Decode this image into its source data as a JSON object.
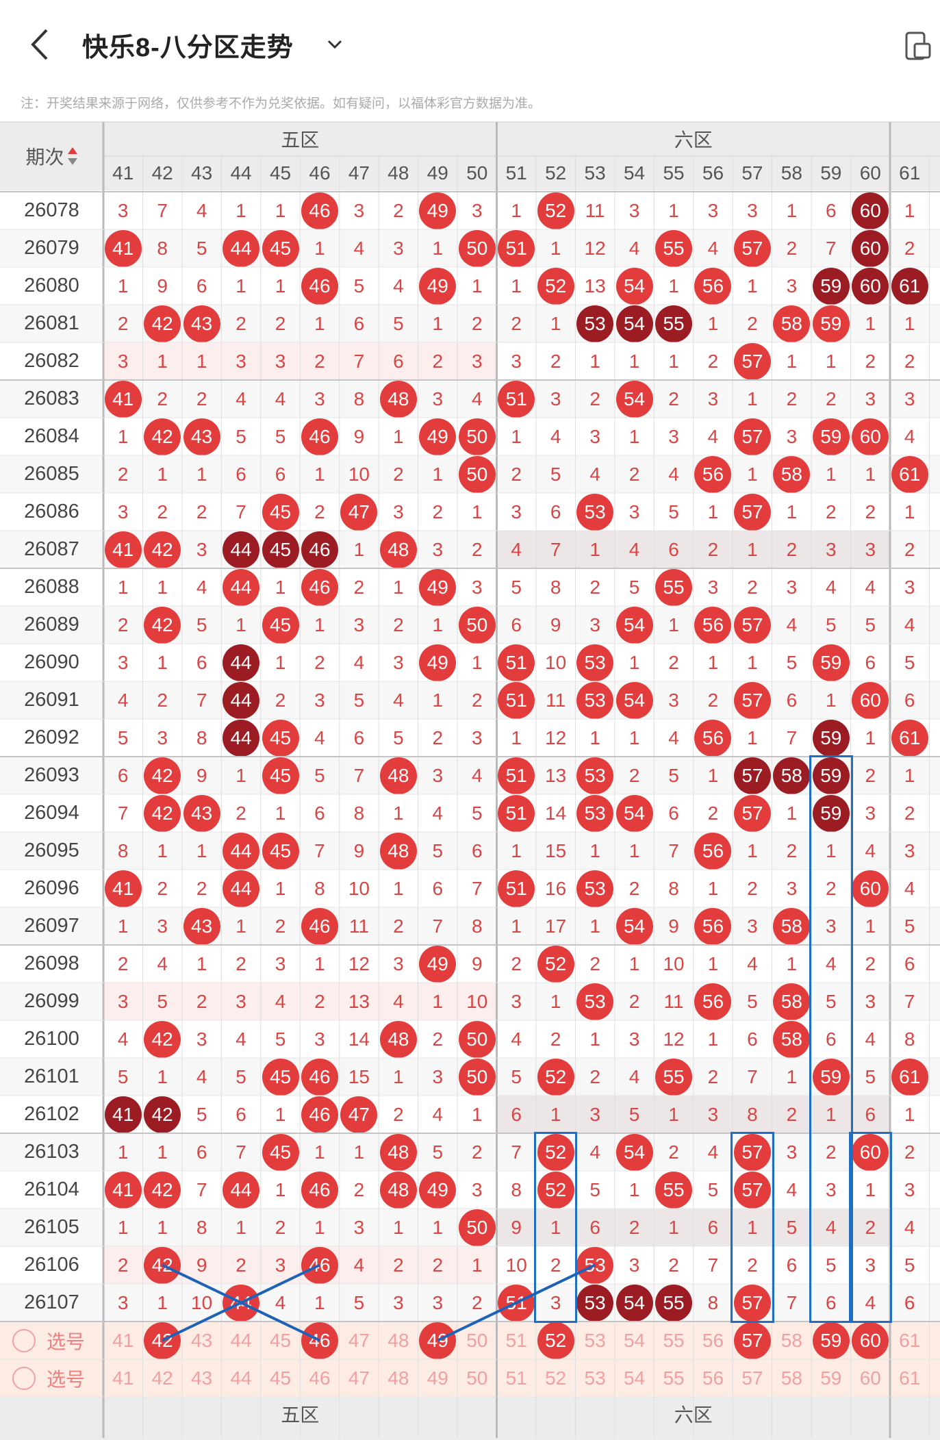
{
  "header": {
    "title": "快乐8-八分区走势",
    "note": "注：开奖结果来源于网络，仅供参考不作为兑奖依据。如有疑问，以福体彩官方数据为准。"
  },
  "table": {
    "period_header": "期次",
    "zones": [
      "五区",
      "六区"
    ],
    "columns": [
      "41",
      "42",
      "43",
      "44",
      "45",
      "46",
      "47",
      "48",
      "49",
      "50",
      "51",
      "52",
      "53",
      "54",
      "55",
      "56",
      "57",
      "58",
      "59",
      "60",
      "61"
    ],
    "rows": [
      {
        "p": "26078",
        "c": [
          "3",
          "7",
          "4",
          "1",
          "1",
          "46",
          "3",
          "2",
          "49",
          "3",
          "1",
          "52",
          "11",
          "3",
          "1",
          "3",
          "3",
          "1",
          "6",
          "60",
          "1"
        ],
        "b": [
          5,
          8,
          11,
          19
        ],
        "d": [
          19
        ]
      },
      {
        "p": "26079",
        "c": [
          "41",
          "8",
          "5",
          "44",
          "45",
          "1",
          "4",
          "3",
          "1",
          "50",
          "51",
          "1",
          "12",
          "4",
          "55",
          "4",
          "57",
          "2",
          "7",
          "60",
          "2"
        ],
        "b": [
          0,
          3,
          4,
          9,
          10,
          14,
          16,
          19
        ],
        "d": [
          19
        ]
      },
      {
        "p": "26080",
        "c": [
          "1",
          "9",
          "6",
          "1",
          "1",
          "46",
          "5",
          "4",
          "49",
          "1",
          "1",
          "52",
          "13",
          "54",
          "1",
          "56",
          "1",
          "3",
          "59",
          "60",
          "61"
        ],
        "b": [
          5,
          8,
          11,
          13,
          15,
          18,
          19,
          20
        ],
        "d": [
          18,
          19,
          20
        ]
      },
      {
        "p": "26081",
        "c": [
          "2",
          "42",
          "43",
          "2",
          "2",
          "1",
          "6",
          "5",
          "1",
          "2",
          "2",
          "1",
          "53",
          "54",
          "55",
          "1",
          "2",
          "58",
          "59",
          "1",
          "1"
        ],
        "b": [
          1,
          2,
          12,
          13,
          14,
          17,
          18
        ],
        "d": [
          12,
          13,
          14
        ]
      },
      {
        "p": "26082",
        "c": [
          "3",
          "1",
          "1",
          "3",
          "3",
          "2",
          "7",
          "6",
          "2",
          "3",
          "3",
          "2",
          "1",
          "1",
          "1",
          "2",
          "57",
          "1",
          "1",
          "2",
          "2"
        ],
        "b": [
          16
        ],
        "d": []
      },
      {
        "p": "26083",
        "c": [
          "41",
          "2",
          "2",
          "4",
          "4",
          "3",
          "8",
          "48",
          "3",
          "4",
          "51",
          "3",
          "2",
          "54",
          "2",
          "3",
          "1",
          "2",
          "2",
          "3",
          "3"
        ],
        "b": [
          0,
          7,
          10,
          13
        ],
        "d": []
      },
      {
        "p": "26084",
        "c": [
          "1",
          "42",
          "43",
          "5",
          "5",
          "46",
          "9",
          "1",
          "49",
          "50",
          "1",
          "4",
          "3",
          "1",
          "3",
          "4",
          "57",
          "3",
          "59",
          "60",
          "4"
        ],
        "b": [
          1,
          2,
          5,
          8,
          9,
          16,
          18,
          19
        ],
        "d": []
      },
      {
        "p": "26085",
        "c": [
          "2",
          "1",
          "1",
          "6",
          "6",
          "1",
          "10",
          "2",
          "1",
          "50",
          "2",
          "5",
          "4",
          "2",
          "4",
          "56",
          "1",
          "58",
          "1",
          "1",
          "61"
        ],
        "b": [
          9,
          15,
          17,
          20
        ],
        "d": []
      },
      {
        "p": "26086",
        "c": [
          "3",
          "2",
          "2",
          "7",
          "45",
          "2",
          "47",
          "3",
          "2",
          "1",
          "3",
          "6",
          "53",
          "3",
          "5",
          "1",
          "57",
          "1",
          "2",
          "2",
          "1"
        ],
        "b": [
          4,
          6,
          12,
          16
        ],
        "d": []
      },
      {
        "p": "26087",
        "c": [
          "41",
          "42",
          "3",
          "44",
          "45",
          "46",
          "1",
          "48",
          "3",
          "2",
          "4",
          "7",
          "1",
          "4",
          "6",
          "2",
          "1",
          "2",
          "3",
          "3",
          "2"
        ],
        "b": [
          0,
          1,
          3,
          4,
          5,
          7
        ],
        "d": [
          3,
          4,
          5
        ]
      },
      {
        "p": "26088",
        "c": [
          "1",
          "1",
          "4",
          "44",
          "1",
          "46",
          "2",
          "1",
          "49",
          "3",
          "5",
          "8",
          "2",
          "5",
          "55",
          "3",
          "2",
          "3",
          "4",
          "4",
          "3"
        ],
        "b": [
          3,
          5,
          8,
          14
        ],
        "d": []
      },
      {
        "p": "26089",
        "c": [
          "2",
          "42",
          "5",
          "1",
          "45",
          "1",
          "3",
          "2",
          "1",
          "50",
          "6",
          "9",
          "3",
          "54",
          "1",
          "56",
          "57",
          "4",
          "5",
          "5",
          "4"
        ],
        "b": [
          1,
          4,
          9,
          13,
          15,
          16
        ],
        "d": []
      },
      {
        "p": "26090",
        "c": [
          "3",
          "1",
          "6",
          "44",
          "1",
          "2",
          "4",
          "3",
          "49",
          "1",
          "51",
          "10",
          "53",
          "1",
          "2",
          "1",
          "1",
          "5",
          "59",
          "6",
          "5"
        ],
        "b": [
          3,
          8,
          10,
          12,
          18
        ],
        "d": [
          3
        ]
      },
      {
        "p": "26091",
        "c": [
          "4",
          "2",
          "7",
          "44",
          "2",
          "3",
          "5",
          "4",
          "1",
          "2",
          "51",
          "11",
          "53",
          "54",
          "3",
          "2",
          "57",
          "6",
          "1",
          "60",
          "6"
        ],
        "b": [
          3,
          10,
          12,
          13,
          16,
          19
        ],
        "d": [
          3
        ]
      },
      {
        "p": "26092",
        "c": [
          "5",
          "3",
          "8",
          "44",
          "45",
          "4",
          "6",
          "5",
          "2",
          "3",
          "1",
          "12",
          "1",
          "1",
          "4",
          "56",
          "1",
          "7",
          "59",
          "1",
          "61"
        ],
        "b": [
          3,
          4,
          15,
          18,
          20
        ],
        "d": [
          3,
          18
        ]
      },
      {
        "p": "26093",
        "c": [
          "6",
          "42",
          "9",
          "1",
          "45",
          "5",
          "7",
          "48",
          "3",
          "4",
          "51",
          "13",
          "53",
          "2",
          "5",
          "1",
          "57",
          "58",
          "59",
          "2",
          "1"
        ],
        "b": [
          1,
          4,
          7,
          10,
          12,
          16,
          17,
          18
        ],
        "d": [
          16,
          17,
          18
        ]
      },
      {
        "p": "26094",
        "c": [
          "7",
          "42",
          "43",
          "2",
          "1",
          "6",
          "8",
          "1",
          "4",
          "5",
          "51",
          "14",
          "53",
          "54",
          "6",
          "2",
          "57",
          "1",
          "59",
          "3",
          "2"
        ],
        "b": [
          1,
          2,
          10,
          12,
          13,
          16,
          18
        ],
        "d": [
          18
        ]
      },
      {
        "p": "26095",
        "c": [
          "8",
          "1",
          "1",
          "44",
          "45",
          "7",
          "9",
          "48",
          "5",
          "6",
          "1",
          "15",
          "1",
          "1",
          "7",
          "56",
          "1",
          "2",
          "1",
          "4",
          "3"
        ],
        "b": [
          3,
          4,
          7,
          15
        ],
        "d": []
      },
      {
        "p": "26096",
        "c": [
          "41",
          "2",
          "2",
          "44",
          "1",
          "8",
          "10",
          "1",
          "6",
          "7",
          "51",
          "16",
          "53",
          "2",
          "8",
          "1",
          "2",
          "3",
          "2",
          "60",
          "4"
        ],
        "b": [
          0,
          3,
          10,
          12,
          19
        ],
        "d": []
      },
      {
        "p": "26097",
        "c": [
          "1",
          "3",
          "43",
          "1",
          "2",
          "46",
          "11",
          "2",
          "7",
          "8",
          "1",
          "17",
          "1",
          "54",
          "9",
          "56",
          "3",
          "58",
          "3",
          "1",
          "5"
        ],
        "b": [
          2,
          5,
          13,
          15,
          17
        ],
        "d": []
      },
      {
        "p": "26098",
        "c": [
          "2",
          "4",
          "1",
          "2",
          "3",
          "1",
          "12",
          "3",
          "49",
          "9",
          "2",
          "52",
          "2",
          "1",
          "10",
          "1",
          "4",
          "1",
          "4",
          "2",
          "6"
        ],
        "b": [
          8,
          11
        ],
        "d": []
      },
      {
        "p": "26099",
        "c": [
          "3",
          "5",
          "2",
          "3",
          "4",
          "2",
          "13",
          "4",
          "1",
          "10",
          "3",
          "1",
          "53",
          "2",
          "11",
          "56",
          "5",
          "58",
          "5",
          "3",
          "7"
        ],
        "b": [
          12,
          15,
          17
        ],
        "d": []
      },
      {
        "p": "26100",
        "c": [
          "4",
          "42",
          "3",
          "4",
          "5",
          "3",
          "14",
          "48",
          "2",
          "50",
          "4",
          "2",
          "1",
          "3",
          "12",
          "1",
          "6",
          "58",
          "6",
          "4",
          "8"
        ],
        "b": [
          1,
          7,
          9,
          17
        ],
        "d": []
      },
      {
        "p": "26101",
        "c": [
          "5",
          "1",
          "4",
          "5",
          "45",
          "46",
          "15",
          "1",
          "3",
          "50",
          "5",
          "52",
          "2",
          "4",
          "55",
          "2",
          "7",
          "1",
          "59",
          "5",
          "61"
        ],
        "b": [
          4,
          5,
          9,
          11,
          14,
          18,
          20
        ],
        "d": []
      },
      {
        "p": "26102",
        "c": [
          "41",
          "42",
          "5",
          "6",
          "1",
          "46",
          "47",
          "2",
          "4",
          "1",
          "6",
          "1",
          "3",
          "5",
          "1",
          "3",
          "8",
          "2",
          "1",
          "6",
          "1"
        ],
        "b": [
          0,
          1,
          5,
          6
        ],
        "d": [
          0,
          1
        ]
      },
      {
        "p": "26103",
        "c": [
          "1",
          "1",
          "6",
          "7",
          "45",
          "1",
          "1",
          "48",
          "5",
          "2",
          "7",
          "52",
          "4",
          "54",
          "2",
          "4",
          "57",
          "3",
          "2",
          "60",
          "2"
        ],
        "b": [
          4,
          7,
          11,
          13,
          16,
          19
        ],
        "d": []
      },
      {
        "p": "26104",
        "c": [
          "41",
          "42",
          "7",
          "44",
          "1",
          "46",
          "2",
          "48",
          "49",
          "3",
          "8",
          "52",
          "5",
          "1",
          "55",
          "5",
          "57",
          "4",
          "3",
          "1",
          "3"
        ],
        "b": [
          0,
          1,
          3,
          5,
          7,
          8,
          11,
          14,
          16
        ],
        "d": []
      },
      {
        "p": "26105",
        "c": [
          "1",
          "1",
          "8",
          "1",
          "2",
          "1",
          "3",
          "1",
          "1",
          "50",
          "9",
          "1",
          "6",
          "2",
          "1",
          "6",
          "1",
          "5",
          "4",
          "2",
          "4"
        ],
        "b": [
          9
        ],
        "d": []
      },
      {
        "p": "26106",
        "c": [
          "2",
          "42",
          "9",
          "2",
          "3",
          "46",
          "4",
          "2",
          "2",
          "1",
          "10",
          "2",
          "53",
          "3",
          "2",
          "7",
          "2",
          "6",
          "5",
          "3",
          "5"
        ],
        "b": [
          1,
          5,
          12
        ],
        "d": []
      },
      {
        "p": "26107",
        "c": [
          "3",
          "1",
          "10",
          "44",
          "4",
          "1",
          "5",
          "3",
          "3",
          "2",
          "51",
          "3",
          "53",
          "54",
          "55",
          "8",
          "57",
          "7",
          "6",
          "4",
          "6"
        ],
        "b": [
          3,
          10,
          12,
          13,
          14,
          16
        ],
        "d": [
          12,
          13,
          14
        ]
      }
    ],
    "pick_label": "选号",
    "pick_row1": {
      "c": [
        "41",
        "42",
        "43",
        "44",
        "45",
        "46",
        "47",
        "48",
        "49",
        "50",
        "51",
        "52",
        "53",
        "54",
        "55",
        "56",
        "57",
        "58",
        "59",
        "60",
        "61"
      ],
      "b": [
        1,
        5,
        8,
        11,
        16,
        18,
        19
      ]
    },
    "pick_row2": {
      "c": [
        "41",
        "42",
        "43",
        "44",
        "45",
        "46",
        "47",
        "48",
        "49",
        "50",
        "51",
        "52",
        "53",
        "54",
        "55",
        "56",
        "57",
        "58",
        "59",
        "60",
        "61"
      ]
    }
  }
}
